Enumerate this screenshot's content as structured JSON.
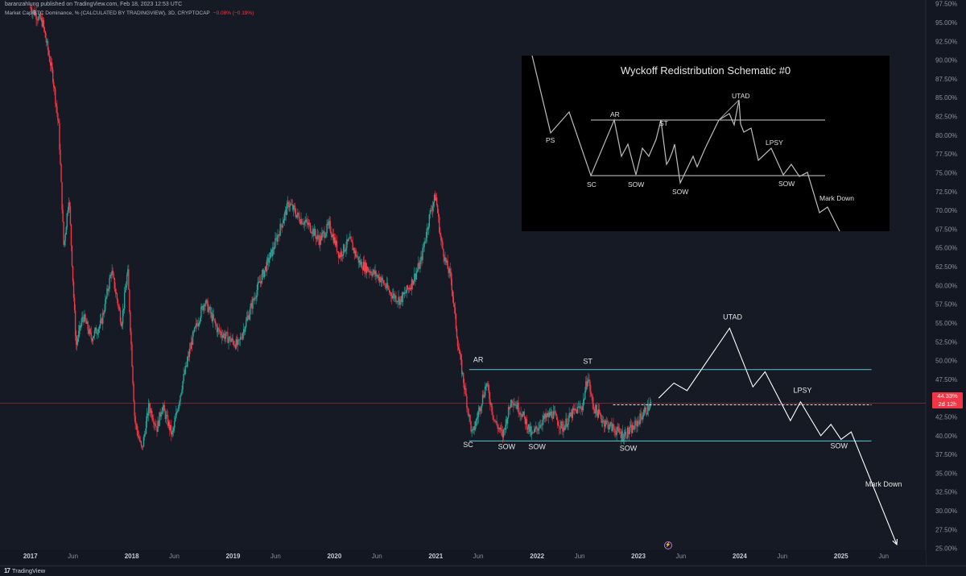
{
  "header": {
    "publisher": "baranzahlung published on TradingView.com, Feb 18, 2023 12:53 UTC",
    "symbol": "Market Cap BTC Dominance, % (CALCULATED BY TRADINGVIEW), 3D, CRYPTOCAP",
    "change": "−0.08% (−0.19%)"
  },
  "price_tag": {
    "value": "44.33%",
    "countdown": "2d 12h"
  },
  "footer": {
    "brand": "TradingView"
  },
  "colors": {
    "up": "#26a69a",
    "down": "#f23645",
    "annotation": "#ffffff",
    "channel": "#5ec6d4"
  },
  "chart_data": {
    "type": "candlestick",
    "y_axis_labels": [
      "97.50%",
      "95.00%",
      "92.50%",
      "90.00%",
      "87.50%",
      "85.00%",
      "82.50%",
      "80.00%",
      "77.50%",
      "75.00%",
      "72.50%",
      "70.00%",
      "67.50%",
      "65.00%",
      "62.50%",
      "60.00%",
      "57.50%",
      "55.00%",
      "52.50%",
      "50.00%",
      "47.50%",
      "45.00%",
      "42.50%",
      "40.00%",
      "37.50%",
      "35.00%",
      "32.50%",
      "30.00%",
      "27.50%",
      "25.00%"
    ],
    "x_axis_labels": [
      "2017",
      "Jun",
      "2018",
      "Jun",
      "2019",
      "Jun",
      "2020",
      "Jun",
      "2021",
      "Jun",
      "2022",
      "Jun",
      "2023",
      "Jun",
      "2024",
      "Jun",
      "2025",
      "Jun"
    ],
    "ylim": [
      24,
      98
    ],
    "price_path": [
      [
        2017.0,
        97
      ],
      [
        2017.12,
        95
      ],
      [
        2017.22,
        88
      ],
      [
        2017.28,
        81
      ],
      [
        2017.33,
        65
      ],
      [
        2017.38,
        72
      ],
      [
        2017.45,
        52
      ],
      [
        2017.52,
        56
      ],
      [
        2017.6,
        53
      ],
      [
        2017.7,
        55
      ],
      [
        2017.8,
        62
      ],
      [
        2017.9,
        55
      ],
      [
        2017.96,
        62
      ],
      [
        2018.03,
        42
      ],
      [
        2018.1,
        38
      ],
      [
        2018.17,
        44
      ],
      [
        2018.25,
        41
      ],
      [
        2018.3,
        44
      ],
      [
        2018.4,
        40
      ],
      [
        2018.5,
        47
      ],
      [
        2018.6,
        53
      ],
      [
        2018.72,
        58
      ],
      [
        2018.85,
        54
      ],
      [
        2018.95,
        53
      ],
      [
        2019.05,
        52
      ],
      [
        2019.15,
        56
      ],
      [
        2019.25,
        60
      ],
      [
        2019.4,
        65
      ],
      [
        2019.55,
        71
      ],
      [
        2019.65,
        69
      ],
      [
        2019.75,
        68
      ],
      [
        2019.85,
        66
      ],
      [
        2019.95,
        68
      ],
      [
        2020.05,
        64
      ],
      [
        2020.15,
        66
      ],
      [
        2020.25,
        63
      ],
      [
        2020.35,
        62
      ],
      [
        2020.45,
        61
      ],
      [
        2020.55,
        59
      ],
      [
        2020.65,
        58
      ],
      [
        2020.75,
        60
      ],
      [
        2020.85,
        63
      ],
      [
        2020.95,
        70
      ],
      [
        2021.0,
        72
      ],
      [
        2021.05,
        66
      ],
      [
        2021.1,
        63
      ],
      [
        2021.15,
        61
      ],
      [
        2021.22,
        52
      ],
      [
        2021.3,
        45
      ],
      [
        2021.36,
        40
      ],
      [
        2021.42,
        43
      ],
      [
        2021.5,
        47
      ],
      [
        2021.58,
        42
      ],
      [
        2021.66,
        40
      ],
      [
        2021.75,
        45
      ],
      [
        2021.85,
        43
      ],
      [
        2021.95,
        40
      ],
      [
        2022.05,
        42
      ],
      [
        2022.15,
        43
      ],
      [
        2022.25,
        41
      ],
      [
        2022.35,
        43
      ],
      [
        2022.45,
        44
      ],
      [
        2022.5,
        48
      ],
      [
        2022.55,
        44
      ],
      [
        2022.65,
        42
      ],
      [
        2022.75,
        41
      ],
      [
        2022.85,
        40
      ],
      [
        2022.95,
        41
      ],
      [
        2023.05,
        43
      ],
      [
        2023.13,
        44.3
      ]
    ],
    "levels": {
      "resistance": 48.8,
      "support": 39.3,
      "current": 44.33,
      "current_dashed": 44.1
    },
    "projection": [
      [
        2023.2,
        45
      ],
      [
        2023.35,
        47
      ],
      [
        2023.48,
        46
      ],
      [
        2023.9,
        54.3
      ],
      [
        2024.13,
        46.5
      ],
      [
        2024.25,
        48.5
      ],
      [
        2024.5,
        42
      ],
      [
        2024.6,
        44.5
      ],
      [
        2024.8,
        40
      ],
      [
        2024.9,
        41.5
      ],
      [
        2025.0,
        39.5
      ],
      [
        2025.1,
        40.5
      ],
      [
        2025.55,
        25.5
      ]
    ],
    "annotations": [
      {
        "text": "SC",
        "x": 2021.32,
        "y": 38.5
      },
      {
        "text": "AR",
        "x": 2021.42,
        "y": 49.8
      },
      {
        "text": "SOW",
        "x": 2021.7,
        "y": 38.2
      },
      {
        "text": "SOW",
        "x": 2022.0,
        "y": 38.2
      },
      {
        "text": "ST",
        "x": 2022.5,
        "y": 49.6
      },
      {
        "text": "SOW",
        "x": 2022.9,
        "y": 38.0
      },
      {
        "text": "UTAD",
        "x": 2023.93,
        "y": 55.5
      },
      {
        "text": "LPSY",
        "x": 2024.62,
        "y": 45.7
      },
      {
        "text": "SOW",
        "x": 2024.98,
        "y": 38.3
      },
      {
        "text": "Mark Down",
        "x": 2025.42,
        "y": 33.2
      }
    ]
  },
  "inset": {
    "title": "Wyckoff Redistribution Schematic #0",
    "labels": [
      "PS",
      "SC",
      "AR",
      "SOW",
      "ST",
      "SOW",
      "UTAD",
      "LPSY",
      "SOW",
      "Mark Down"
    ]
  }
}
